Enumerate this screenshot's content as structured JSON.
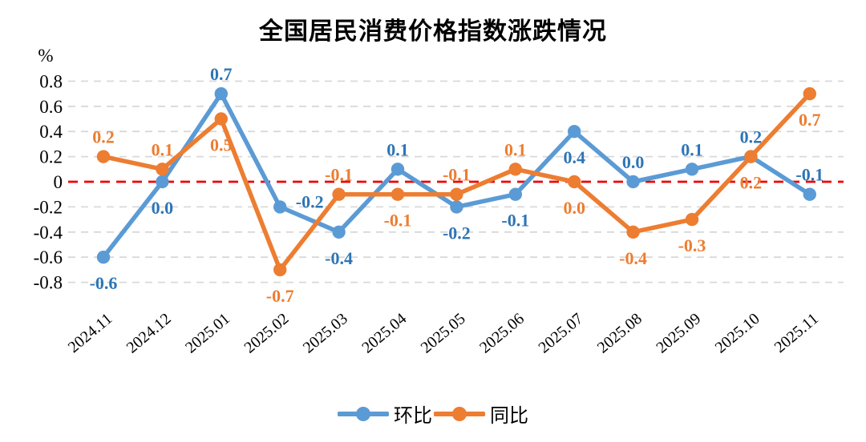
{
  "chart_data": {
    "type": "line",
    "title": "全国居民消费价格指数涨跌情况",
    "ylabel": "%",
    "xlabel": "",
    "ylim": [
      -0.8,
      0.8
    ],
    "ytick_step": 0.2,
    "grid": true,
    "grid_style": "dashed",
    "legend_position": "bottom",
    "zero_line": {
      "color": "#EE0000",
      "style": "dashed"
    },
    "categories": [
      "2024.11",
      "2024.12",
      "2025.01",
      "2025.02",
      "2025.03",
      "2025.04",
      "2025.05",
      "2025.06",
      "2025.07",
      "2025.08",
      "2025.09",
      "2025.10",
      "2025.11"
    ],
    "series": [
      {
        "id": "mom",
        "name": "环比",
        "color": "#5B9BD5",
        "label_color": "#2E75B6",
        "values": [
          -0.6,
          0.0,
          0.7,
          -0.2,
          -0.4,
          0.1,
          -0.2,
          -0.1,
          0.4,
          0.0,
          0.1,
          0.2,
          -0.1
        ],
        "labels": [
          "-0.6",
          "0.0",
          "0.7",
          "-0.2",
          "-0.4",
          "0.1",
          "-0.2",
          "-0.1",
          "0.4",
          "0.0",
          "0.1",
          "0.2",
          "-0.1"
        ],
        "label_side": [
          "below",
          "below",
          "above",
          "right",
          "below",
          "above",
          "below",
          "below",
          "below",
          "above",
          "above",
          "above",
          "above"
        ]
      },
      {
        "id": "yoy",
        "name": "同比",
        "color": "#ED7D31",
        "label_color": "#ED7D31",
        "values": [
          0.2,
          0.1,
          0.5,
          -0.7,
          -0.1,
          -0.1,
          -0.1,
          0.1,
          0.0,
          -0.4,
          -0.3,
          0.2,
          0.7
        ],
        "labels": [
          "0.2",
          "0.1",
          "0.5",
          "-0.7",
          "-0.1",
          "-0.1",
          "-0.1",
          "0.1",
          "0.0",
          "-0.4",
          "-0.3",
          "0.2",
          "0.7"
        ],
        "label_side": [
          "above",
          "above",
          "below",
          "below",
          "above",
          "below",
          "above",
          "above",
          "below",
          "below",
          "below",
          "below",
          "below"
        ]
      }
    ],
    "colors": {
      "gridline": "#D9D9D9",
      "axis_text": "#000000"
    }
  }
}
